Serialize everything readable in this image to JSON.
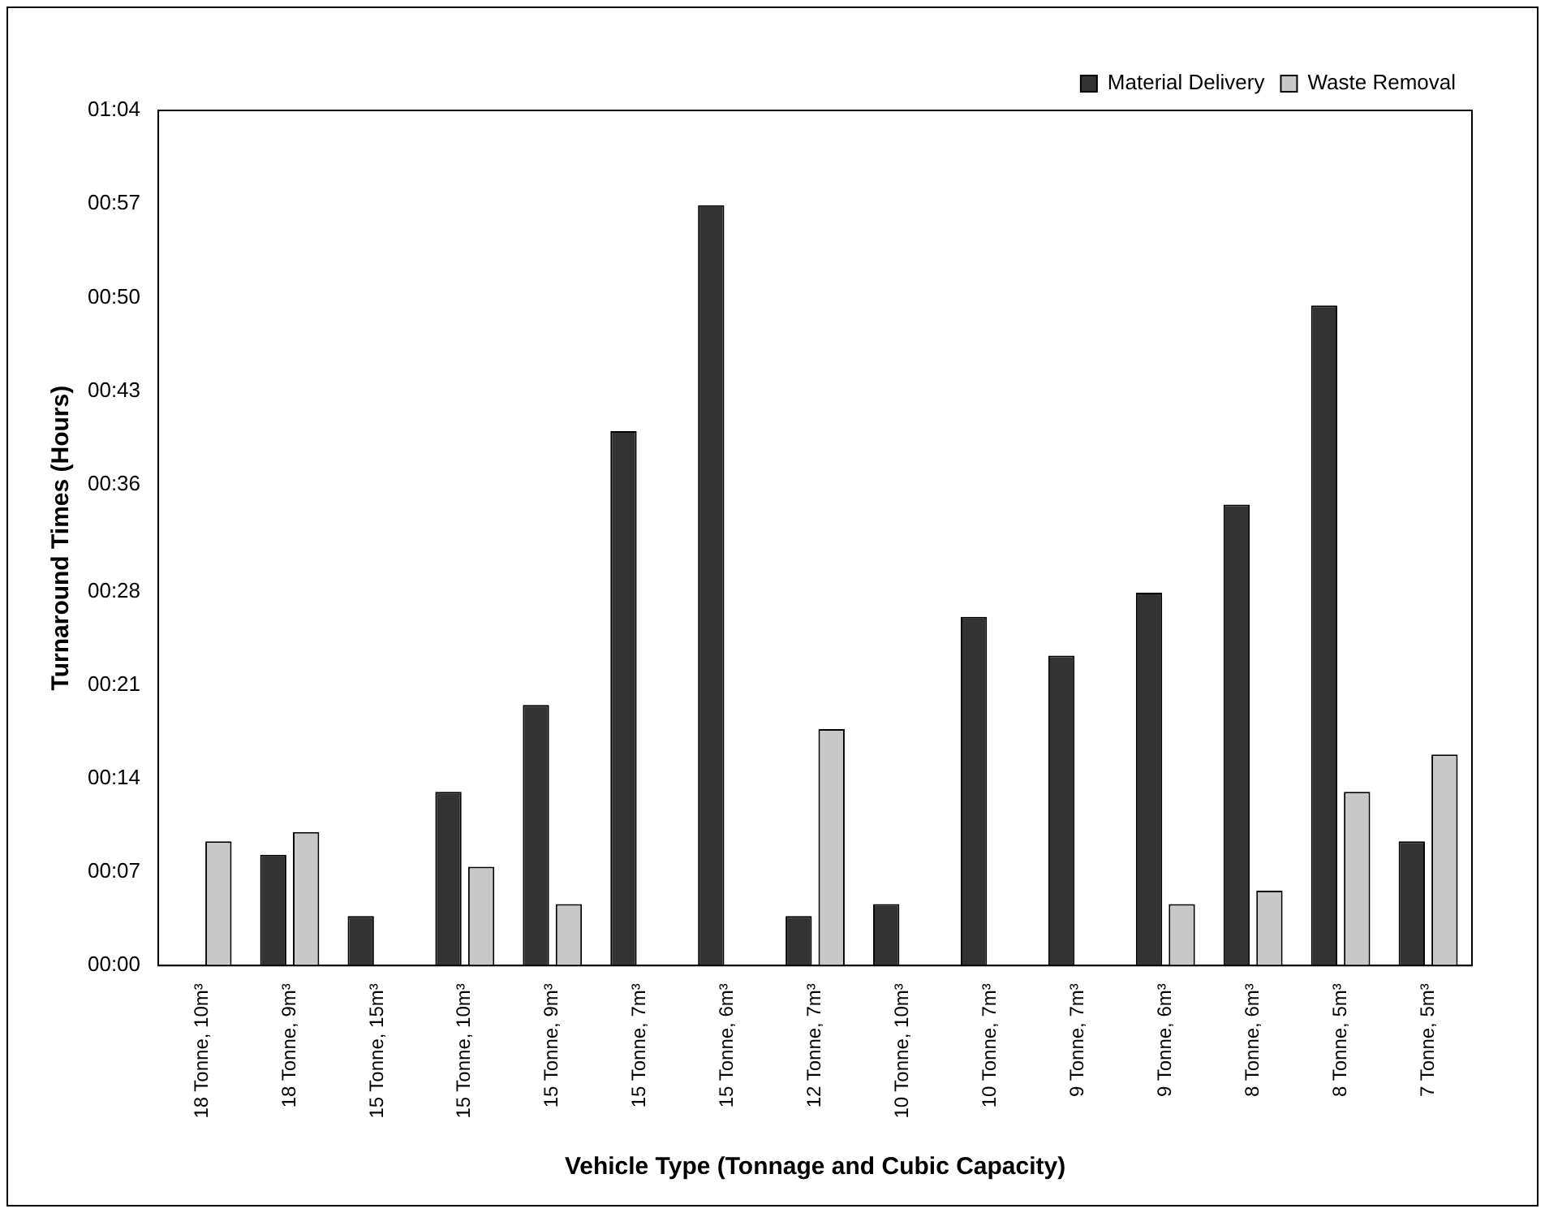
{
  "chart_data": {
    "type": "bar",
    "xlabel": "Vehicle Type (Tonnage and Cubic Capacity)",
    "ylabel": "Turnaround Times (Hours)",
    "categories": [
      "18 Tonne, 10m³",
      "18 Tonne, 9m³",
      "15 Tonne, 15m³",
      "15 Tonne, 10m³",
      "15 Tonne, 9m³",
      "15 Tonne, 7m³",
      "15 Tonne, 6m³",
      "12 Tonne, 7m³",
      "10 Tonne, 10m³",
      "10 Tonne, 7m³",
      "9 Tonne, 7m³",
      "9 Tonne, 6m³",
      "8 Tonne, 6m³",
      "8 Tonne, 5m³",
      "7 Tonne, 5m³"
    ],
    "series": [
      {
        "name": "Material Delivery",
        "color": "#333333",
        "values": [
          null,
          8.3,
          3.7,
          13,
          19.5,
          40,
          56.9,
          3.7,
          4.6,
          26.1,
          23.2,
          27.9,
          34.5,
          49.4,
          9.3
        ]
      },
      {
        "name": "Waste Removal",
        "color": "#c8c8c8",
        "values": [
          9.3,
          10,
          null,
          7.4,
          4.6,
          null,
          null,
          17.7,
          null,
          null,
          null,
          4.6,
          5.6,
          13,
          15.8
        ]
      }
    ],
    "ylim": [
      0,
      64
    ],
    "yticks": [
      {
        "value": 0,
        "label": "00:00"
      },
      {
        "value": 7,
        "label": "00:07"
      },
      {
        "value": 14,
        "label": "00:14"
      },
      {
        "value": 21,
        "label": "00:21"
      },
      {
        "value": 28,
        "label": "00:28"
      },
      {
        "value": 36,
        "label": "00:36"
      },
      {
        "value": 43,
        "label": "00:43"
      },
      {
        "value": 50,
        "label": "00:50"
      },
      {
        "value": 57,
        "label": "00:57"
      },
      {
        "value": 64,
        "label": "01:04"
      }
    ],
    "grid": false,
    "legend": "top right"
  }
}
